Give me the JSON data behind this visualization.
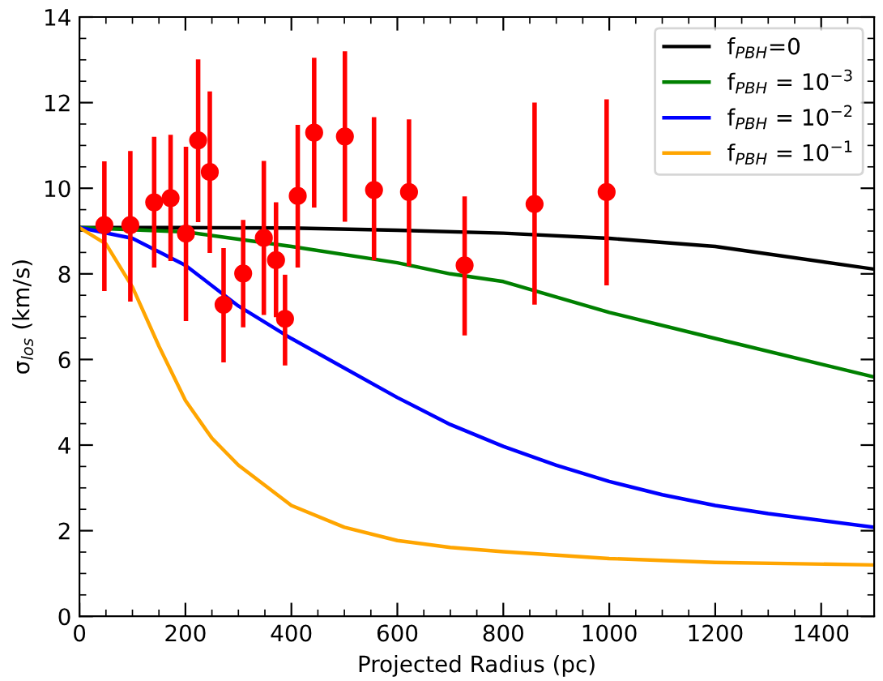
{
  "chart_data": {
    "type": "scatter",
    "xlabel": "Projected Radius (pc)",
    "ylabel": "σ$_{los}$ (km/s)",
    "xlim": [
      0,
      1500
    ],
    "xticks": [
      0,
      200,
      400,
      600,
      800,
      1000,
      1200,
      1400
    ],
    "ylim": [
      0,
      14
    ],
    "yticks": [
      0,
      2,
      4,
      6,
      8,
      10,
      12,
      14
    ],
    "legend": "top right",
    "grid": false,
    "series": [
      {
        "color": "#ff0000",
        "marker": "circle",
        "x": [
          47,
          96,
          141,
          172,
          201,
          224,
          246,
          272,
          309,
          348,
          371,
          388,
          412,
          443,
          501,
          556,
          622,
          727,
          859,
          995
        ],
        "values": [
          9.14,
          9.14,
          9.67,
          9.77,
          8.94,
          11.12,
          10.38,
          7.28,
          8.01,
          8.84,
          8.32,
          6.95,
          9.82,
          11.3,
          11.21,
          9.96,
          9.91,
          8.2,
          9.63,
          9.91
        ],
        "errors": [
          [
            7.6,
            10.63
          ],
          [
            7.35,
            10.87
          ],
          [
            8.15,
            11.2
          ],
          [
            8.3,
            11.25
          ],
          [
            6.9,
            10.97
          ],
          [
            9.21,
            13.01
          ],
          [
            8.49,
            12.26
          ],
          [
            5.93,
            8.6
          ],
          [
            6.75,
            9.26
          ],
          [
            7.04,
            10.64
          ],
          [
            6.99,
            9.67
          ],
          [
            5.86,
            7.98
          ],
          [
            8.15,
            11.48
          ],
          [
            9.55,
            13.05
          ],
          [
            9.22,
            13.2
          ],
          [
            8.32,
            11.66
          ],
          [
            8.18,
            11.61
          ],
          [
            6.56,
            9.81
          ],
          [
            7.28,
            12.0
          ],
          [
            7.73,
            12.08
          ]
        ]
      },
      {
        "type": "line",
        "name": "f$_{PBH}$=0",
        "color": "#000000",
        "x": [
          0,
          200,
          400,
          600,
          800,
          1000,
          1200,
          1500
        ],
        "values": [
          9.08,
          9.08,
          9.07,
          9.02,
          8.95,
          8.83,
          8.64,
          8.11
        ]
      },
      {
        "type": "line",
        "name": "f$_{PBH}$ = 10$^{−3}$",
        "color": "#008000",
        "x": [
          0,
          200,
          400,
          600,
          700,
          800,
          1000,
          1200,
          1500
        ],
        "values": [
          9.08,
          8.98,
          8.64,
          8.26,
          8.0,
          7.82,
          7.1,
          6.49,
          5.59
        ]
      },
      {
        "type": "line",
        "name": "f$_{PBH}$ = 10$^{−2}$",
        "color": "#0000ff",
        "x": [
          0,
          100,
          200,
          300,
          400,
          500,
          600,
          700,
          800,
          900,
          1000,
          1100,
          1200,
          1300,
          1500
        ],
        "values": [
          9.08,
          8.83,
          8.2,
          7.25,
          6.49,
          5.8,
          5.11,
          4.48,
          3.97,
          3.53,
          3.15,
          2.84,
          2.59,
          2.4,
          2.08
        ]
      },
      {
        "type": "line",
        "name": "f$_{PBH}$ = 10$^{−1}$",
        "color": "#ffa500",
        "x": [
          0,
          50,
          100,
          150,
          200,
          250,
          300,
          400,
          500,
          600,
          700,
          800,
          1000,
          1200,
          1500
        ],
        "values": [
          9.08,
          8.7,
          7.69,
          6.31,
          5.04,
          4.16,
          3.53,
          2.59,
          2.08,
          1.77,
          1.61,
          1.51,
          1.35,
          1.26,
          1.2
        ]
      }
    ]
  }
}
